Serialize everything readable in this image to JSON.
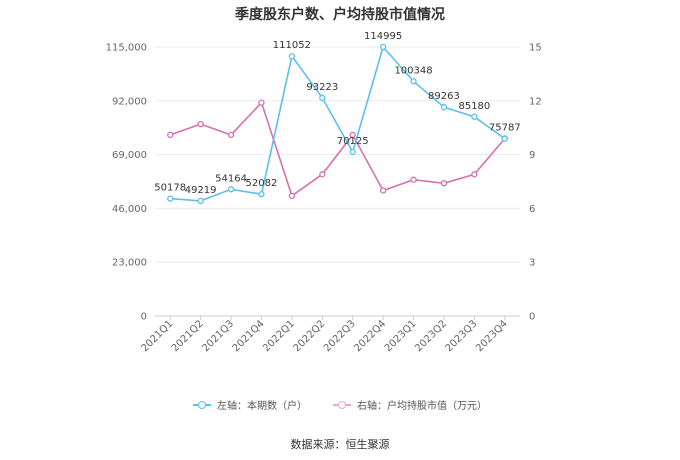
{
  "chart_data": {
    "type": "line",
    "title": "季度股东户数、户均持股市值情况",
    "categories": [
      "2021Q1",
      "2021Q2",
      "2021Q3",
      "2021Q4",
      "2022Q1",
      "2022Q2",
      "2022Q3",
      "2022Q4",
      "2023Q1",
      "2023Q2",
      "2023Q3",
      "2023Q4"
    ],
    "y_left": {
      "ylim": [
        0,
        115000
      ],
      "ticks": [
        0,
        23000,
        46000,
        69000,
        92000,
        115000
      ],
      "tick_labels": [
        "0",
        "23,000",
        "46,000",
        "69,000",
        "92,000",
        "115,000"
      ]
    },
    "y_right": {
      "ylim": [
        0,
        15
      ],
      "ticks": [
        0,
        3,
        6,
        9,
        12,
        15
      ],
      "tick_labels": [
        "0",
        "3",
        "6",
        "9",
        "12",
        "15"
      ]
    },
    "series": [
      {
        "name": "左轴：本期数（户）",
        "axis": "left",
        "color": "#5bc0eb",
        "values": [
          50178,
          49219,
          54164,
          52082,
          111052,
          93223,
          70125,
          114995,
          100348,
          89263,
          85180,
          75787
        ],
        "labels": [
          "50178",
          "49219",
          "54164",
          "52082",
          "111052",
          "93223",
          "70125",
          "114995",
          "100348",
          "89263",
          "85180",
          "75787"
        ]
      },
      {
        "name": "右轴：户均持股市值（万元）",
        "axis": "right",
        "color": "#d670b0",
        "values": [
          10.1,
          10.7,
          10.1,
          11.9,
          6.7,
          7.9,
          10.1,
          7.0,
          7.6,
          7.4,
          7.9,
          9.9
        ]
      }
    ],
    "grid": true,
    "legend_position": "bottom"
  },
  "source": "数据来源：恒生聚源"
}
